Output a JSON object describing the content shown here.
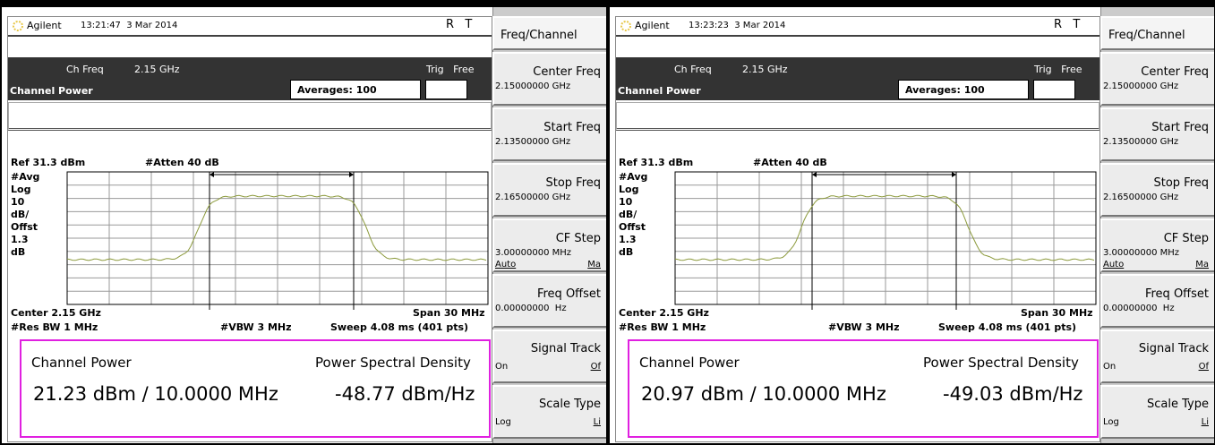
{
  "panels": [
    {
      "brand": "Agilent",
      "timestamp": "13:21:47  3 Mar 2014",
      "status": "R   T",
      "ch_freq_label": "Ch Freq",
      "ch_freq": "2.15 GHz",
      "trig": "Trig   Free",
      "mode": "Channel Power",
      "averages": "Averages: 100",
      "ref": "Ref 31.3 dBm",
      "atten": "#Atten 40 dB",
      "scale_labels": [
        "#Avg",
        "Log",
        "10",
        "dB/",
        "Offst",
        "1.3",
        "dB"
      ],
      "center": "Center 2.15 GHz",
      "span": "Span 30 MHz",
      "res_bw": "#Res BW 1 MHz",
      "vbw": "#VBW 3 MHz",
      "sweep": "Sweep 4.08 ms (401 pts)",
      "result_labels": [
        "Channel Power",
        "Power Spectral Density"
      ],
      "channel_power": "21.23 dBm / 10.0000 MHz",
      "psd": "-48.77 dBm/Hz",
      "menu_title": "Freq/Channel",
      "softkeys": [
        {
          "label": "Center Freq",
          "value": "2.15000000 GHz"
        },
        {
          "label": "Start Freq",
          "value": "2.13500000 GHz"
        },
        {
          "label": "Stop Freq",
          "value": "2.16500000 GHz"
        },
        {
          "label": "CF Step",
          "value": "3.00000000 MHz",
          "options": [
            "Auto",
            "Ma"
          ]
        },
        {
          "label": "Freq Offset",
          "value": "0.00000000  Hz"
        },
        {
          "label": "Signal Track",
          "options": [
            "On",
            "Of"
          ]
        },
        {
          "label": "Scale Type",
          "options": [
            "Log",
            "Li"
          ]
        }
      ]
    },
    {
      "brand": "Agilent",
      "timestamp": "13:23:23  3 Mar 2014",
      "status": "R   T",
      "ch_freq_label": "Ch Freq",
      "ch_freq": "2.15 GHz",
      "trig": "Trig   Free",
      "mode": "Channel Power",
      "averages": "Averages: 100",
      "ref": "Ref 31.3 dBm",
      "atten": "#Atten 40 dB",
      "scale_labels": [
        "#Avg",
        "Log",
        "10",
        "dB/",
        "Offst",
        "1.3",
        "dB"
      ],
      "center": "Center 2.15 GHz",
      "span": "Span 30 MHz",
      "res_bw": "#Res BW 1 MHz",
      "vbw": "#VBW 3 MHz",
      "sweep": "Sweep 4.08 ms (401 pts)",
      "result_labels": [
        "Channel Power",
        "Power Spectral Density"
      ],
      "channel_power": "20.97 dBm / 10.0000 MHz",
      "psd": "-49.03 dBm/Hz",
      "menu_title": "Freq/Channel",
      "softkeys": [
        {
          "label": "Center Freq",
          "value": "2.15000000 GHz"
        },
        {
          "label": "Start Freq",
          "value": "2.13500000 GHz"
        },
        {
          "label": "Stop Freq",
          "value": "2.16500000 GHz"
        },
        {
          "label": "CF Step",
          "value": "3.00000000 MHz",
          "options": [
            "Auto",
            "Ma"
          ]
        },
        {
          "label": "Freq Offset",
          "value": "0.00000000  Hz"
        },
        {
          "label": "Signal Track",
          "options": [
            "On",
            "Of"
          ]
        },
        {
          "label": "Scale Type",
          "options": [
            "Log",
            "Li"
          ]
        }
      ]
    }
  ]
}
